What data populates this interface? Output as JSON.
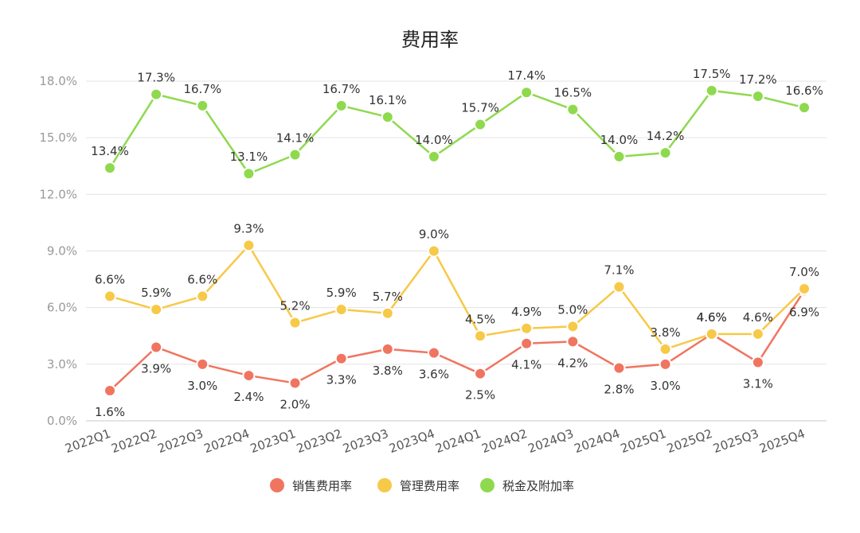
{
  "chart_data": {
    "type": "line",
    "title": "费用率",
    "xlabel": "",
    "ylabel": "",
    "ylim": [
      0,
      18
    ],
    "yticks": [
      0,
      3,
      6,
      9,
      12,
      15,
      18
    ],
    "ytick_labels": [
      "0.0%",
      "3.0%",
      "6.0%",
      "9.0%",
      "12.0%",
      "15.0%",
      "18.0%"
    ],
    "grid": true,
    "legend_position": "bottom-center",
    "categories": [
      "2022Q1",
      "2022Q2",
      "2022Q3",
      "2022Q4",
      "2023Q1",
      "2023Q2",
      "2023Q3",
      "2023Q4",
      "2024Q1",
      "2024Q2",
      "2024Q3",
      "2024Q4",
      "2025Q1",
      "2025Q2",
      "2025Q3",
      "2025Q4"
    ],
    "series": [
      {
        "name": "销售费用率",
        "color": "#f07560",
        "values": [
          1.6,
          3.9,
          3.0,
          2.4,
          2.0,
          3.3,
          3.8,
          3.6,
          2.5,
          4.1,
          4.2,
          2.8,
          3.0,
          4.6,
          3.1,
          6.9
        ],
        "labels": [
          "1.6%",
          "3.9%",
          "3.0%",
          "2.4%",
          "2.0%",
          "3.3%",
          "3.8%",
          "3.6%",
          "2.5%",
          "4.1%",
          "4.2%",
          "2.8%",
          "3.0%",
          "4.6%",
          "3.1%",
          "6.9%"
        ]
      },
      {
        "name": "管理费用率",
        "color": "#f7c948",
        "values": [
          6.6,
          5.9,
          6.6,
          9.3,
          5.2,
          5.9,
          5.7,
          9.0,
          4.5,
          4.9,
          5.0,
          7.1,
          3.8,
          4.6,
          4.6,
          7.0
        ],
        "labels": [
          "6.6%",
          "5.9%",
          "6.6%",
          "9.3%",
          "5.2%",
          "5.9%",
          "5.7%",
          "9.0%",
          "4.5%",
          "4.9%",
          "5.0%",
          "7.1%",
          "3.8%",
          "4.6%",
          "4.6%",
          "7.0%"
        ]
      },
      {
        "name": "税金及附加率",
        "color": "#8fd94f",
        "values": [
          13.4,
          17.3,
          16.7,
          13.1,
          14.1,
          16.7,
          16.1,
          14.0,
          15.7,
          17.4,
          16.5,
          14.0,
          14.2,
          17.5,
          17.2,
          16.6
        ],
        "labels": [
          "13.4%",
          "17.3%",
          "16.7%",
          "13.1%",
          "14.1%",
          "16.7%",
          "16.1%",
          "14.0%",
          "15.7%",
          "17.4%",
          "16.5%",
          "14.0%",
          "14.2%",
          "17.5%",
          "17.2%",
          "16.6%"
        ]
      }
    ]
  }
}
